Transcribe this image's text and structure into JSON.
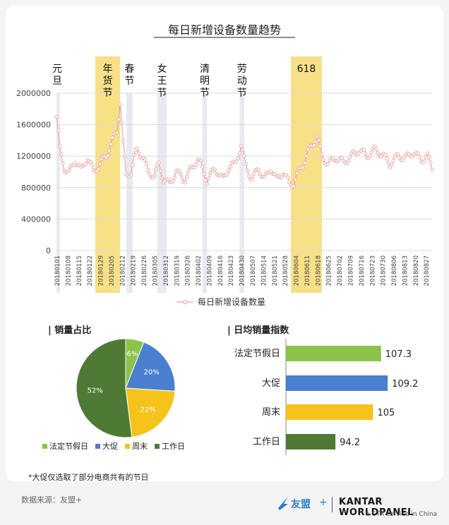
{
  "footnote": "*大促仅选取了部分电商共有的节日",
  "footer": {
    "source": "数据来源：友盟+",
    "brand_youmeng": "友盟",
    "brand_plus": "+",
    "brand_kantar": "KANTAR WORLDPANEL",
    "brand_ctr": "a CTR service in China"
  },
  "colors": {
    "highlight": "#f7dd7a",
    "line": "#e7a4a4",
    "marker_fill": "#ffffff",
    "green": "#8bc34a",
    "blue": "#4a7fd0",
    "yellow": "#f6c31c",
    "darkgreen": "#4f7a35"
  },
  "chart_data": [
    {
      "type": "line",
      "title": "每日新增设备数量趋势",
      "legend": "每日新增设备数量",
      "legend_placement": "bottom",
      "grid": true,
      "ylim": [
        0,
        2000000
      ],
      "y_ticks": [
        "0",
        "400000",
        "800000",
        "1200000",
        "1600000",
        "2000000"
      ],
      "x_ticks": [
        "20180101",
        "20180108",
        "20180115",
        "20180122",
        "20180129",
        "20180205",
        "20180212",
        "20180219",
        "20180226",
        "20180305",
        "20180312",
        "20180319",
        "20180326",
        "20180402",
        "20180409",
        "20180416",
        "20180423",
        "20180430",
        "20180507",
        "20180514",
        "20180521",
        "20180528",
        "20180604",
        "20180611",
        "20180618",
        "20180625",
        "20180702",
        "20180709",
        "20180716",
        "20180723",
        "20180730",
        "20180806",
        "20180813",
        "20180820",
        "20180827"
      ],
      "annotations": [
        {
          "label": "元旦",
          "start": "20180101",
          "end": "20180101"
        },
        {
          "label": "年货节",
          "start": "20180126",
          "end": "20180210"
        },
        {
          "label": "春节",
          "start": "20180215",
          "end": "20180218"
        },
        {
          "label": "女王节",
          "start": "20180307",
          "end": "20180312"
        },
        {
          "label": "清明节",
          "start": "20180405",
          "end": "20180407"
        },
        {
          "label": "劳动节",
          "start": "20180429",
          "end": "20180501"
        },
        {
          "label": "618",
          "start": "20180601",
          "end": "20180620"
        }
      ],
      "series": [
        {
          "name": "每日新增设备数量",
          "x_start": "20180101",
          "x_end": "20180831",
          "keypoints": [
            [
              "20180101",
              1700000
            ],
            [
              "20180103",
              1280000
            ],
            [
              "20180106",
              1050000
            ],
            [
              "20180109",
              980000
            ],
            [
              "20180113",
              1150000
            ],
            [
              "20180117",
              1020000
            ],
            [
              "20180121",
              1180000
            ],
            [
              "20180125",
              1000000
            ],
            [
              "20180129",
              1100000
            ],
            [
              "20180202",
              1200000
            ],
            [
              "20180206",
              1400000
            ],
            [
              "20180209",
              1520000
            ],
            [
              "20180211",
              1900000
            ],
            [
              "20180213",
              1350000
            ],
            [
              "20180215",
              950000
            ],
            [
              "20180218",
              1000000
            ],
            [
              "20180220",
              1180000
            ],
            [
              "20180222",
              1280000
            ],
            [
              "20180226",
              1180000
            ],
            [
              "20180301",
              1000000
            ],
            [
              "20180305",
              950000
            ],
            [
              "20180308",
              1100000
            ],
            [
              "20180311",
              900000
            ],
            [
              "20180315",
              850000
            ],
            [
              "20180319",
              1000000
            ],
            [
              "20180325",
              900000
            ],
            [
              "20180329",
              1050000
            ],
            [
              "20180402",
              1150000
            ],
            [
              "20180404",
              1100000
            ],
            [
              "20180408",
              880000
            ],
            [
              "20180413",
              1050000
            ],
            [
              "20180418",
              900000
            ],
            [
              "20180422",
              1050000
            ],
            [
              "20180426",
              1100000
            ],
            [
              "20180430",
              1330000
            ],
            [
              "20180503",
              1080000
            ],
            [
              "20180507",
              900000
            ],
            [
              "20180511",
              1050000
            ],
            [
              "20180515",
              900000
            ],
            [
              "20180519",
              1050000
            ],
            [
              "20180523",
              900000
            ],
            [
              "20180527",
              1000000
            ],
            [
              "20180531",
              850000
            ],
            [
              "20180603",
              850000
            ],
            [
              "20180606",
              1000000
            ],
            [
              "20180609",
              1100000
            ],
            [
              "20180612",
              1250000
            ],
            [
              "20180615",
              1350000
            ],
            [
              "20180618",
              1450000
            ],
            [
              "20180621",
              1200000
            ],
            [
              "20180625",
              1100000
            ],
            [
              "20180630",
              1180000
            ],
            [
              "20180705",
              1120000
            ],
            [
              "20180710",
              1200000
            ],
            [
              "20180715",
              1280000
            ],
            [
              "20180720",
              1200000
            ],
            [
              "20180725",
              1280000
            ],
            [
              "20180730",
              1220000
            ],
            [
              "20180804",
              1100000
            ],
            [
              "20180809",
              1200000
            ],
            [
              "20180814",
              1180000
            ],
            [
              "20180819",
              1250000
            ],
            [
              "20180824",
              1150000
            ],
            [
              "20180828",
              1200000
            ],
            [
              "20180831",
              1050000
            ]
          ]
        }
      ]
    },
    {
      "type": "pie",
      "title": "| 销量占比",
      "categories": [
        "法定节假日",
        "大促",
        "周末",
        "工作日"
      ],
      "values": [
        6,
        20,
        22,
        52
      ],
      "labels": [
        "6%",
        "20%",
        "22%",
        "52%"
      ],
      "colors": [
        "#8bc34a",
        "#4a7fd0",
        "#f6c31c",
        "#4f7a35"
      ],
      "legend_placement": "bottom"
    },
    {
      "type": "bar",
      "title": "| 日均销量指数",
      "categories": [
        "法定节假日",
        "大促",
        "周末",
        "工作日"
      ],
      "values": [
        107.3,
        109.2,
        105,
        94.2
      ],
      "value_labels": [
        "107.3",
        "109.2",
        "105",
        "94.2"
      ],
      "colors": [
        "#8bc34a",
        "#4a7fd0",
        "#f6c31c",
        "#4f7a35"
      ],
      "xlim": [
        80,
        112
      ]
    }
  ]
}
